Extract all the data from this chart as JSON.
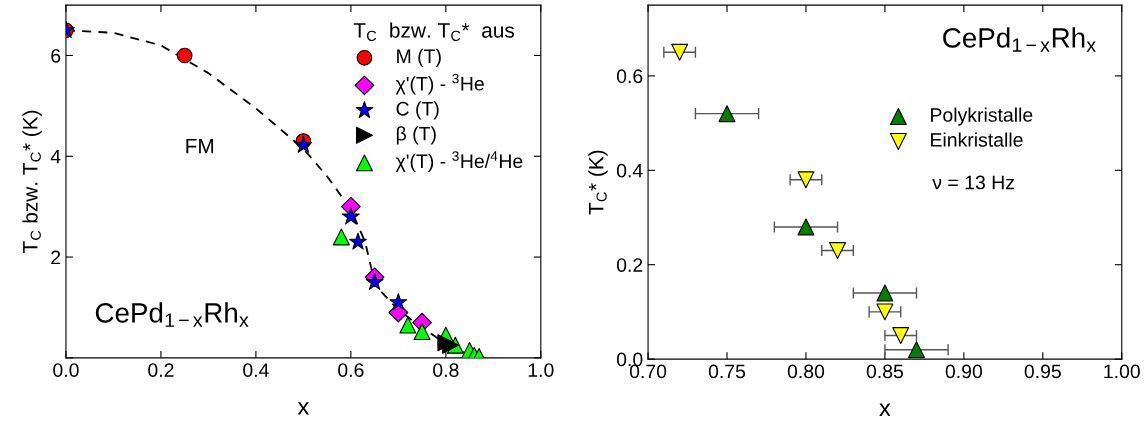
{
  "chart_data": [
    {
      "type": "scatter",
      "xlabel": "x",
      "ylabel": "T$_{C}$ bzw. T$_{C}$* (K)",
      "legend_title": "T$_{C}$  bzw. T$_{C}$*  aus",
      "legend": "top right",
      "grid": false,
      "xlim": [
        0.0,
        1.0
      ],
      "xticks": [
        {
          "value": 0.0,
          "label": "0.0"
        },
        {
          "value": 0.2,
          "label": "0.2"
        },
        {
          "value": 0.4,
          "label": "0.4"
        },
        {
          "value": 0.6,
          "label": "0.6"
        },
        {
          "value": 0.8,
          "label": "0.8"
        },
        {
          "value": 1.0,
          "label": "1.0"
        }
      ],
      "ylim": [
        0,
        7
      ],
      "yticks": [
        {
          "value": 0,
          "label": null
        },
        2,
        4,
        6
      ],
      "annotations": [
        "FM",
        "CePd$_{1−x}$Rh$_{x}$"
      ],
      "series": [
        {
          "type": "line",
          "line_style": "dashed",
          "marker": "none",
          "color": "#000000",
          "x": [
            0.0,
            0.1,
            0.2,
            0.3,
            0.4,
            0.5,
            0.55,
            0.6,
            0.63,
            0.645,
            0.66,
            0.7,
            0.75,
            0.8,
            0.85
          ],
          "values": [
            6.5,
            6.45,
            6.2,
            5.65,
            4.95,
            4.15,
            3.6,
            2.95,
            2.3,
            1.7,
            1.35,
            0.95,
            0.6,
            0.28,
            0.05
          ]
        },
        {
          "name": "M (T)",
          "marker": "circle",
          "color": "#ff0000",
          "x": [
            0.0,
            0.25,
            0.5
          ],
          "values": [
            6.5,
            6.0,
            4.3
          ]
        },
        {
          "name": "χ'(T) - $^{3}$He",
          "marker": "diamond",
          "color": "#ff00ff",
          "x": [
            0.6,
            0.65,
            0.7,
            0.75
          ],
          "values": [
            3.0,
            1.6,
            0.9,
            0.7
          ]
        },
        {
          "name": "C (T)",
          "marker": "star",
          "color": "#0000ff",
          "x": [
            0.0,
            0.5,
            0.6,
            0.615,
            0.65,
            0.7
          ],
          "values": [
            6.5,
            4.22,
            2.8,
            2.3,
            1.5,
            1.1
          ]
        },
        {
          "name": "β (T)",
          "marker": "triangle_right",
          "color": "#000000",
          "x": [
            0.8,
            0.81
          ],
          "values": [
            0.3,
            0.25
          ]
        },
        {
          "name": "χ'(T) - $^{3}$He/$^{4}$He",
          "marker": "triangle",
          "color": "#00ff00",
          "x": [
            0.58,
            0.72,
            0.75,
            0.8,
            0.82,
            0.85,
            0.86,
            0.87
          ],
          "values": [
            2.4,
            0.65,
            0.52,
            0.45,
            0.25,
            0.15,
            0.05,
            0.03
          ]
        }
      ]
    },
    {
      "type": "scatter",
      "xlabel": "x",
      "ylabel": "T$_{C}$* (K)",
      "legend": "top right",
      "grid": false,
      "xlim": [
        0.7,
        1.0
      ],
      "xticks": [
        {
          "value": 0.7,
          "label": "0.70"
        },
        {
          "value": 0.75,
          "label": "0.75"
        },
        {
          "value": 0.8,
          "label": "0.80"
        },
        {
          "value": 0.85,
          "label": "0.85"
        },
        {
          "value": 0.9,
          "label": "0.90"
        },
        {
          "value": 0.95,
          "label": "0.95"
        },
        {
          "value": 1.0,
          "label": "1.00"
        }
      ],
      "ylim": [
        0,
        0.75
      ],
      "yticks": [
        {
          "value": 0.0,
          "label": "0.0"
        },
        0.2,
        0.4,
        0.6
      ],
      "annotations": [
        "CePd$_{1−x}$Rh$_{x}$",
        "ν = 13 Hz"
      ],
      "series": [
        {
          "name": "Polykristalle",
          "marker": "triangle",
          "color": "#007f00",
          "x": [
            0.75,
            0.8,
            0.85,
            0.87
          ],
          "values": [
            0.52,
            0.28,
            0.14,
            0.02
          ],
          "xerrors": [
            0.02,
            0.02,
            0.02,
            0.02
          ]
        },
        {
          "name": "Einkristalle",
          "marker": "triangle_down",
          "color": "#ffff00",
          "x": [
            0.72,
            0.8,
            0.82,
            0.85,
            0.86
          ],
          "values": [
            0.65,
            0.38,
            0.23,
            0.1,
            0.05
          ],
          "xerrors": [
            0.01,
            0.01,
            0.01,
            0.01,
            0.01
          ]
        }
      ]
    }
  ]
}
